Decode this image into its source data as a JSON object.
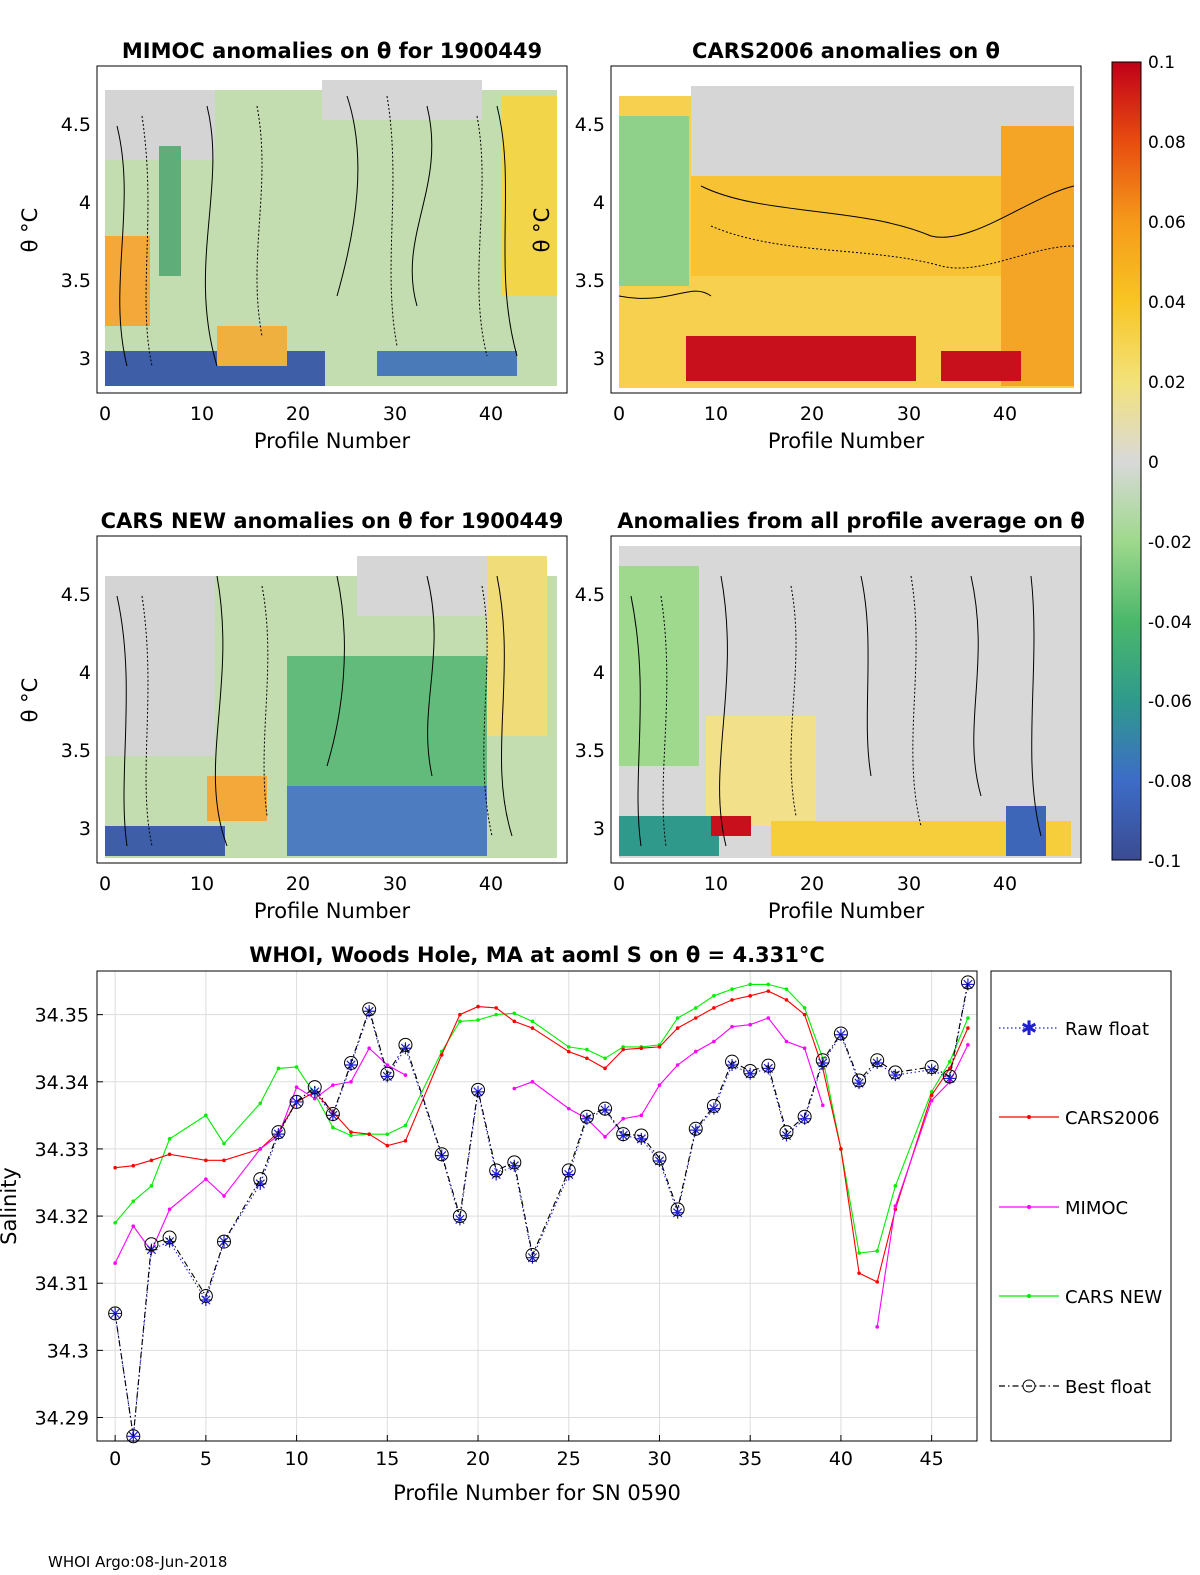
{
  "footer": "WHOI Argo:08-Jun-2018",
  "colors": {
    "raw_float": "#1f1fd0",
    "cars2006": "#ff0000",
    "mimoc": "#ff00ff",
    "cars_new": "#00ee00",
    "best_float": "#000000",
    "grid": "#dddddd",
    "colormap": [
      "#3b4b92",
      "#3d6cc7",
      "#2f9a8c",
      "#4cb86a",
      "#9fd98d",
      "#d9d9d9",
      "#f3e27a",
      "#f8c524",
      "#f59a1a",
      "#e84d10",
      "#c00018"
    ]
  },
  "chart_data": [
    {
      "id": "mimoc",
      "type": "heatmap",
      "title": "MIMOC anomalies on θ  for 1900449",
      "xlabel": "Profile Number",
      "ylabel": "θ °C",
      "xticks": [
        "0",
        "10",
        "20",
        "30",
        "40"
      ],
      "yticks": [
        "4.5",
        "4",
        "3.5",
        "3"
      ],
      "xlim": [
        -1,
        47.5
      ],
      "ylim": [
        2.78,
        4.9
      ]
    },
    {
      "id": "cars2006",
      "type": "heatmap",
      "title": "CARS2006 anomalies on θ",
      "xlabel": "Profile Number",
      "ylabel": "θ °C",
      "xticks": [
        "0",
        "10",
        "20",
        "30",
        "40"
      ],
      "yticks": [
        "4.5",
        "4",
        "3.5",
        "3"
      ],
      "xlim": [
        -1,
        47.5
      ],
      "ylim": [
        2.78,
        4.9
      ]
    },
    {
      "id": "carsnew",
      "type": "heatmap",
      "title": "CARS NEW anomalies on θ for 1900449",
      "xlabel": "Profile Number",
      "ylabel": "θ °C",
      "xticks": [
        "0",
        "10",
        "20",
        "30",
        "40"
      ],
      "yticks": [
        "4.5",
        "4",
        "3.5",
        "3"
      ],
      "xlim": [
        -1,
        47.5
      ],
      "ylim": [
        2.78,
        4.9
      ]
    },
    {
      "id": "allavg",
      "type": "heatmap",
      "title": "Anomalies from all profile average on θ",
      "xlabel": "Profile Number",
      "ylabel": "",
      "xticks": [
        "0",
        "10",
        "20",
        "30",
        "40"
      ],
      "yticks": [
        "4.5",
        "4",
        "3.5",
        "3"
      ],
      "xlim": [
        -1,
        47.5
      ],
      "ylim": [
        2.78,
        4.9
      ]
    },
    {
      "id": "colorbar",
      "type": "colorbar",
      "range": [
        -0.1,
        0.1
      ],
      "ticks": [
        "0.1",
        "0.08",
        "0.06",
        "0.04",
        "0.02",
        "0",
        "-0.02",
        "-0.04",
        "-0.06",
        "-0.08",
        "-0.1"
      ],
      "tick_values": [
        0.1,
        0.08,
        0.06,
        0.04,
        0.02,
        0,
        -0.02,
        -0.04,
        -0.06,
        -0.08,
        -0.1
      ]
    },
    {
      "id": "salinity",
      "type": "line",
      "title": "WHOI, Woods Hole, MA at aoml S on θ = 4.331°C",
      "xlabel": "Profile Number for SN 0590",
      "ylabel": "Salinity",
      "xlim": [
        -1,
        47.5
      ],
      "ylim": [
        34.2865,
        34.3565
      ],
      "xticks": [
        0,
        5,
        10,
        15,
        20,
        25,
        30,
        35,
        40,
        45
      ],
      "xtick_labels": [
        "0",
        "5",
        "10",
        "15",
        "20",
        "25",
        "30",
        "35",
        "40",
        "45"
      ],
      "yticks": [
        34.29,
        34.3,
        34.31,
        34.32,
        34.33,
        34.34,
        34.35
      ],
      "ytick_labels": [
        "34.29",
        "34.3",
        "34.31",
        "34.32",
        "34.33",
        "34.34",
        "34.35"
      ],
      "legend": [
        "Raw float",
        "CARS2006",
        "MIMOC",
        "CARS NEW",
        "Best float"
      ],
      "series": [
        {
          "name": "Raw float",
          "x": [
            0,
            1,
            2,
            3,
            5,
            6,
            8,
            9,
            10,
            11,
            12,
            13,
            14,
            15,
            16,
            18,
            19,
            20,
            21,
            22,
            23,
            25,
            26,
            27,
            28,
            29,
            30,
            31,
            32,
            33,
            34,
            35,
            36,
            37,
            38,
            39,
            40,
            41,
            42,
            43,
            45,
            46,
            47
          ],
          "values": [
            34.3055,
            34.2872,
            34.315,
            34.3162,
            34.3075,
            34.3162,
            34.3248,
            34.3322,
            34.337,
            34.3385,
            34.335,
            34.3425,
            34.3505,
            34.3408,
            34.345,
            34.329,
            34.3195,
            34.3385,
            34.3262,
            34.3275,
            34.3138,
            34.3262,
            34.3345,
            34.3358,
            34.332,
            34.3315,
            34.3282,
            34.3205,
            34.3328,
            34.336,
            34.3425,
            34.3412,
            34.342,
            34.332,
            34.3345,
            34.3428,
            34.347,
            34.3398,
            34.3428,
            34.341,
            34.3418,
            34.3405,
            34.3545
          ]
        },
        {
          "name": "CARS2006",
          "x": [
            0,
            1,
            2,
            3,
            5,
            6,
            8,
            9,
            10,
            11,
            12,
            13,
            14,
            15,
            16,
            18,
            19,
            20,
            21,
            22,
            23,
            25,
            26,
            27,
            28,
            29,
            30,
            31,
            32,
            33,
            34,
            35,
            36,
            37,
            38,
            39,
            40,
            41,
            42,
            43,
            45,
            46,
            47
          ],
          "values": [
            34.3272,
            34.3275,
            34.3283,
            34.3292,
            34.3283,
            34.3283,
            34.33,
            34.3325,
            34.337,
            34.3385,
            34.3355,
            34.3325,
            34.3322,
            34.3305,
            34.3312,
            34.344,
            34.35,
            34.3512,
            34.351,
            34.349,
            34.348,
            34.3445,
            34.3435,
            34.342,
            34.3448,
            34.345,
            34.3452,
            34.348,
            34.3495,
            34.351,
            34.3522,
            34.3528,
            34.3535,
            34.3522,
            34.35,
            34.342,
            34.33,
            34.3115,
            34.3102,
            34.321,
            34.338,
            34.342,
            34.348
          ]
        },
        {
          "name": "MIMOC",
          "x": [
            0,
            1,
            2,
            3,
            5,
            6,
            8,
            9,
            10,
            11,
            12,
            13,
            14,
            15,
            16,
            null,
            22,
            23,
            25,
            26,
            27,
            28,
            29,
            30,
            31,
            32,
            33,
            34,
            35,
            36,
            37,
            38,
            39,
            null,
            42,
            43,
            45,
            46,
            47
          ],
          "values": [
            34.313,
            34.3185,
            34.3148,
            34.321,
            34.3255,
            34.323,
            34.33,
            34.332,
            34.3392,
            34.3375,
            34.3395,
            34.34,
            34.345,
            34.3425,
            34.341,
            null,
            34.339,
            34.34,
            34.336,
            34.3345,
            34.3318,
            34.3345,
            34.335,
            34.3395,
            34.3425,
            34.3445,
            34.346,
            34.3482,
            34.3485,
            34.3495,
            34.346,
            34.345,
            34.3365,
            null,
            34.3035,
            34.3215,
            34.3372,
            34.34,
            34.3455
          ]
        },
        {
          "name": "CARS NEW",
          "x": [
            0,
            1,
            2,
            3,
            5,
            6,
            8,
            9,
            10,
            11,
            12,
            13,
            14,
            15,
            16,
            18,
            19,
            20,
            21,
            22,
            23,
            25,
            26,
            27,
            28,
            29,
            30,
            31,
            32,
            33,
            34,
            35,
            36,
            37,
            38,
            39,
            40,
            41,
            42,
            43,
            45,
            46,
            47
          ],
          "values": [
            34.319,
            34.3222,
            34.3245,
            34.3315,
            34.335,
            34.3308,
            34.3368,
            34.342,
            34.3422,
            34.3382,
            34.3332,
            34.332,
            34.3322,
            34.3322,
            34.3335,
            34.3445,
            34.349,
            34.3492,
            34.35,
            34.3502,
            34.349,
            34.3452,
            34.3448,
            34.3435,
            34.3452,
            34.3452,
            34.3455,
            34.3495,
            34.351,
            34.3528,
            34.3538,
            34.3545,
            34.3545,
            34.3538,
            34.351,
            34.3435,
            34.33,
            34.3145,
            34.3148,
            34.3245,
            34.3385,
            34.343,
            34.3495
          ]
        },
        {
          "name": "Best float",
          "x": [
            0,
            1,
            2,
            3,
            5,
            6,
            8,
            9,
            10,
            11,
            12,
            13,
            14,
            15,
            16,
            18,
            19,
            20,
            21,
            22,
            23,
            25,
            26,
            27,
            28,
            29,
            30,
            31,
            32,
            33,
            34,
            35,
            36,
            37,
            38,
            39,
            40,
            41,
            42,
            43,
            45,
            46,
            47
          ],
          "values": [
            34.3055,
            34.2872,
            34.3158,
            34.3168,
            34.3081,
            34.3162,
            34.3255,
            34.3325,
            34.337,
            34.3392,
            34.3352,
            34.3428,
            34.3508,
            34.3412,
            34.3455,
            34.3292,
            34.32,
            34.3388,
            34.3268,
            34.328,
            34.3142,
            34.3268,
            34.3348,
            34.336,
            34.3322,
            34.332,
            34.3286,
            34.321,
            34.333,
            34.3364,
            34.343,
            34.3416,
            34.3424,
            34.3325,
            34.3348,
            34.3432,
            34.3472,
            34.3402,
            34.3432,
            34.3414,
            34.3422,
            34.3408,
            34.3548
          ]
        }
      ]
    }
  ]
}
